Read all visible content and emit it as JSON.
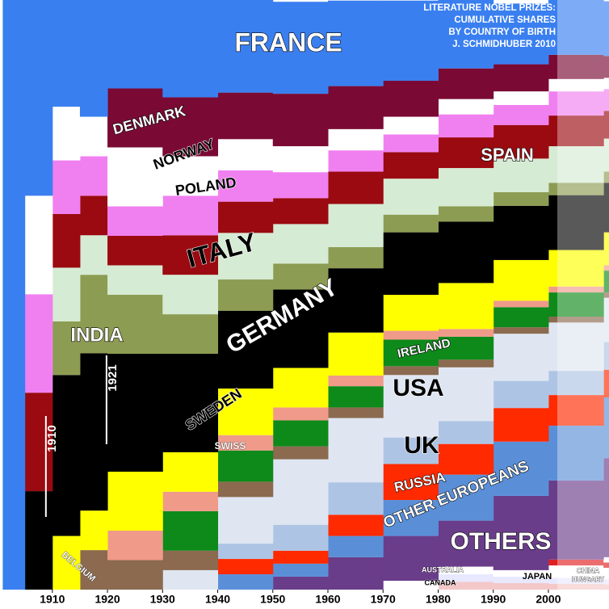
{
  "chart_data": {
    "type": "stacked-step-area",
    "title": [
      "LITERATURE NOBEL PRIZES:",
      "CUMULATIVE SHARES",
      "BY COUNTRY OF BIRTH",
      "J. SCHMIDHUBER 2010"
    ],
    "x": [
      1901,
      1905,
      1910,
      1915,
      1920,
      1930,
      1940,
      1950,
      1960,
      1970,
      1980,
      1990,
      2000,
      2010
    ],
    "xlim": [
      1900.5,
      2011
    ],
    "xticks": [
      1910,
      1920,
      1930,
      1940,
      1950,
      1960,
      1970,
      1980,
      1990,
      2000
    ],
    "ylim": [
      0,
      100
    ],
    "annotations": [
      1910,
      1921
    ],
    "series": [
      {
        "name": "CANADA",
        "color": "#f4c8c8",
        "values": [
          0,
          0,
          0,
          0,
          0,
          0,
          0,
          0,
          0,
          0,
          1.3,
          1.1,
          1.0,
          0.9
        ]
      },
      {
        "name": "AUSTRALIA",
        "color": "#e8e8ff",
        "values": [
          0,
          0,
          0,
          0,
          0,
          0,
          0,
          0,
          0,
          0,
          1.3,
          1.1,
          1.0,
          0.9
        ]
      },
      {
        "name": "JAPAN",
        "color": "#ffffff",
        "values": [
          0,
          0,
          0,
          0,
          0,
          0,
          0,
          0,
          0,
          1.5,
          1.3,
          1.1,
          2.1,
          1.9
        ]
      },
      {
        "name": "CHINA",
        "color": "#e02020",
        "values": [
          0,
          0,
          0,
          0,
          0,
          0,
          0,
          0,
          0,
          0,
          0,
          0,
          1.0,
          0.9
        ]
      },
      {
        "name": "HUNGARY",
        "color": "#ffffff",
        "values": [
          0,
          0,
          0,
          0,
          0,
          0,
          0,
          0,
          0,
          0,
          0,
          0,
          0,
          0.9
        ]
      },
      {
        "name": "OTHERS",
        "color": "#6a3d8a",
        "values": [
          0,
          0,
          0,
          0,
          0,
          0,
          0,
          2.2,
          5.5,
          7.6,
          7.8,
          12.6,
          13.4,
          16.8
        ]
      },
      {
        "name": "OTHER EUROPEANS",
        "color": "#5a8fd8",
        "values": [
          0,
          0,
          0,
          0,
          0,
          0,
          2.6,
          2.2,
          3.6,
          6.1,
          7.8,
          9.2,
          9.3,
          10.3
        ]
      },
      {
        "name": "RUSSIA",
        "color": "#ff2a00",
        "values": [
          0,
          0,
          0,
          0,
          0,
          0,
          2.6,
          2.2,
          3.6,
          6.1,
          5.2,
          5.7,
          5.2,
          4.7
        ]
      },
      {
        "name": "UK",
        "color": "#aec4e4",
        "values": [
          0,
          0,
          0,
          0,
          0,
          0,
          2.6,
          4.4,
          5.5,
          4.5,
          3.9,
          4.6,
          4.1,
          4.7
        ]
      },
      {
        "name": "USA",
        "color": "#dfe6f2",
        "values": [
          0,
          0,
          0,
          0,
          0,
          3.3,
          7.9,
          11.1,
          10.9,
          10.6,
          9.1,
          8.0,
          8.2,
          7.5
        ]
      },
      {
        "name": "BELGIUM",
        "color": "#8b6a4f",
        "values": [
          0,
          0,
          0,
          6.7,
          5,
          3.3,
          2.6,
          2.2,
          1.8,
          1.5,
          1.3,
          1.1,
          1.0,
          0.9
        ]
      },
      {
        "name": "IRELAND",
        "color": "#0e8a1a",
        "values": [
          0,
          0,
          0,
          0,
          0,
          6.7,
          5.3,
          4.4,
          3.6,
          4.5,
          3.9,
          3.4,
          4.1,
          3.7
        ]
      },
      {
        "name": "SWISS",
        "color": "#f09a8a",
        "values": [
          0,
          0,
          0,
          0,
          5,
          3.3,
          2.6,
          2.2,
          1.8,
          1.5,
          1.3,
          1.1,
          1.0,
          0.9
        ]
      },
      {
        "name": "SWEDEN",
        "color": "#ffff00",
        "values": [
          0,
          0,
          9.1,
          6.7,
          10,
          6.7,
          7.9,
          6.7,
          7.3,
          6.1,
          7.8,
          6.9,
          6.2,
          5.6
        ]
      },
      {
        "name": "GERMANY",
        "color": "#000000",
        "values": [
          0,
          16.7,
          27.3,
          26.7,
          20,
          16.7,
          13.2,
          13.3,
          10.9,
          10.6,
          10.4,
          9.2,
          9.3,
          8.4
        ]
      },
      {
        "name": "INDIA",
        "color": "#8c9c52",
        "values": [
          0,
          0,
          9.1,
          13.3,
          10,
          6.7,
          5.3,
          4.4,
          3.6,
          3.0,
          2.6,
          2.3,
          2.1,
          1.9
        ]
      },
      {
        "name": "ITALY",
        "color": "#d6ebd4",
        "values": [
          0,
          0,
          9.1,
          6.7,
          5,
          6.7,
          7.9,
          6.7,
          7.3,
          6.1,
          6.5,
          5.7,
          6.2,
          5.6
        ]
      },
      {
        "name": "SPAIN",
        "color": "#9a0a10",
        "values": [
          0,
          16.7,
          9.1,
          6.7,
          5,
          6.7,
          5.3,
          4.4,
          5.5,
          4.5,
          5.2,
          5.7,
          5.2,
          4.7
        ]
      },
      {
        "name": "POLAND",
        "color": "#f080f0",
        "values": [
          0,
          16.7,
          9.1,
          6.7,
          5,
          6.7,
          5.3,
          4.4,
          3.6,
          3.0,
          3.9,
          3.4,
          4.1,
          3.7
        ]
      },
      {
        "name": "NORWAY",
        "color": "#ffffff",
        "values": [
          0,
          16.7,
          9.1,
          6.7,
          10,
          6.7,
          5.3,
          4.4,
          3.6,
          3.0,
          2.6,
          2.3,
          2.1,
          1.9
        ]
      },
      {
        "name": "DENMARK",
        "color": "#7a0a34",
        "values": [
          0,
          0,
          0,
          0,
          10,
          10,
          7.9,
          8.9,
          7.3,
          6.1,
          5.2,
          4.6,
          4.1,
          3.7
        ]
      },
      {
        "name": "FRANCE",
        "color": "#3a7ff0",
        "values": [
          100,
          33.3,
          18.2,
          20,
          15,
          16.7,
          15.8,
          15.6,
          14.5,
          13.6,
          11.7,
          10.3,
          9.3,
          9.3
        ]
      }
    ]
  }
}
